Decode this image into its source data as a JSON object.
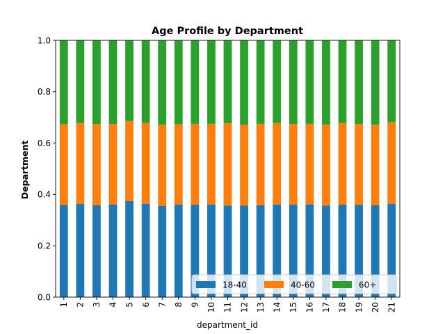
{
  "chart_data": {
    "type": "bar",
    "stacked": true,
    "title": "Age Profile by Department",
    "xlabel": "department_id",
    "ylabel": "Department",
    "ylim": [
      0,
      1.0
    ],
    "yticks": [
      "0.0",
      "0.2",
      "0.4",
      "0.6",
      "0.8",
      "1.0"
    ],
    "categories": [
      "1",
      "2",
      "3",
      "4",
      "5",
      "6",
      "7",
      "8",
      "9",
      "10",
      "11",
      "12",
      "13",
      "14",
      "15",
      "16",
      "17",
      "18",
      "19",
      "20",
      "21"
    ],
    "series": [
      {
        "name": "18-40",
        "color": "#1f77b4",
        "values": [
          0.359,
          0.364,
          0.358,
          0.361,
          0.374,
          0.364,
          0.355,
          0.361,
          0.36,
          0.361,
          0.357,
          0.357,
          0.358,
          0.361,
          0.36,
          0.361,
          0.357,
          0.36,
          0.36,
          0.358,
          0.364
        ]
      },
      {
        "name": "40-60",
        "color": "#ff7f0e",
        "values": [
          0.314,
          0.314,
          0.316,
          0.313,
          0.312,
          0.314,
          0.317,
          0.312,
          0.315,
          0.314,
          0.32,
          0.315,
          0.317,
          0.317,
          0.314,
          0.314,
          0.315,
          0.318,
          0.314,
          0.314,
          0.317
        ]
      },
      {
        "name": "60+",
        "color": "#2ca02c",
        "values": [
          0.327,
          0.322,
          0.326,
          0.326,
          0.314,
          0.322,
          0.328,
          0.327,
          0.325,
          0.325,
          0.323,
          0.328,
          0.325,
          0.322,
          0.326,
          0.325,
          0.328,
          0.322,
          0.326,
          0.328,
          0.319
        ]
      }
    ],
    "legend": {
      "position": "lower-right",
      "columns": 3
    },
    "grid": false
  }
}
